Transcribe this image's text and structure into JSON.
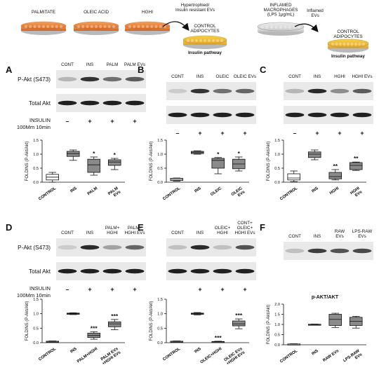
{
  "top_scheme": {
    "dishes_left": [
      "PALMITATE",
      "OLEIC ACID",
      "HGHI"
    ],
    "arrow_left_label": "Hypertrophied/\nInsulin resistant EVs",
    "target_left": "CONTROL\nADIPOCYTES",
    "pathway_left": "Insulin pathway",
    "dish_right": "INFLAMED\nMACROPHAGES\n(LPS 1μg/mL)",
    "arrow_right_label": "Inflamed\nEVs",
    "target_right": "CONTROL\nADIPOCYTES",
    "pathway_right": "Insulin pathway"
  },
  "blot_labels": {
    "pakt": "P-Akt (S473)",
    "total": "Total Akt",
    "insulin": "INSULIN",
    "insulin_dose": "100Mm 10min",
    "minus": "–",
    "plus": "+"
  },
  "y_axis_label": "FOLDINS (P-Akt/Akt)",
  "panels": [
    {
      "letter": "A",
      "lanes": [
        "CONT",
        "INS",
        "PALM",
        "PALM EVs"
      ],
      "insulin": [
        "–",
        "+",
        "+",
        "+"
      ],
      "x_labels": [
        "CONTROL",
        "INS",
        "PALM",
        "PALM\nEVs"
      ],
      "sig": [
        "",
        "",
        "*",
        "*"
      ],
      "chart_data": {
        "type": "box",
        "categories": [
          "CONTROL",
          "INS",
          "PALM",
          "PALM EVs"
        ],
        "ylim": [
          0,
          1.5
        ],
        "yticks": [
          0.0,
          0.5,
          1.0,
          1.5
        ],
        "boxes": [
          [
            0.0,
            0.08,
            0.18,
            0.28,
            0.35
          ],
          [
            0.78,
            0.92,
            1.02,
            1.1,
            1.15
          ],
          [
            0.25,
            0.35,
            0.62,
            0.82,
            0.9
          ],
          [
            0.45,
            0.6,
            0.72,
            0.8,
            0.85
          ]
        ]
      }
    },
    {
      "letter": "B",
      "lanes": [
        "CONT",
        "INS",
        "OLEIC",
        "OLEIC EVs"
      ],
      "insulin": [
        "–",
        "+",
        "+",
        "+"
      ],
      "x_labels": [
        "CONTROL",
        "INS",
        "OLEIC",
        "OLEIC\nEVs"
      ],
      "sig": [
        "",
        "",
        "*",
        "*"
      ],
      "chart_data": {
        "type": "box",
        "categories": [
          "CONTROL",
          "INS",
          "OLEIC",
          "OLEIC EVs"
        ],
        "ylim": [
          0,
          1.5
        ],
        "yticks": [
          0.0,
          0.5,
          1.0,
          1.5
        ],
        "boxes": [
          [
            0.04,
            0.06,
            0.1,
            0.14,
            0.15
          ],
          [
            1.0,
            1.02,
            1.06,
            1.1,
            1.12
          ],
          [
            0.3,
            0.5,
            0.78,
            0.85,
            0.88
          ],
          [
            0.4,
            0.48,
            0.65,
            0.82,
            0.9
          ]
        ]
      }
    },
    {
      "letter": "C",
      "lanes": [
        "CONT",
        "INS",
        "HGHI",
        "HGHI EVs"
      ],
      "insulin": [
        "–",
        "+",
        "+",
        "+"
      ],
      "x_labels": [
        "CONTROL",
        "INS",
        "HGHI",
        "HGHI\nEVs"
      ],
      "sig": [
        "",
        "",
        "**",
        "**"
      ],
      "chart_data": {
        "type": "box",
        "categories": [
          "CONTROL",
          "INS",
          "HGHI",
          "HGHI EVs"
        ],
        "ylim": [
          0,
          1.5
        ],
        "yticks": [
          0.0,
          0.5,
          1.0,
          1.5
        ],
        "boxes": [
          [
            0.02,
            0.08,
            0.15,
            0.3,
            0.4
          ],
          [
            0.8,
            0.88,
            1.0,
            1.08,
            1.15
          ],
          [
            0.08,
            0.12,
            0.2,
            0.35,
            0.45
          ],
          [
            0.42,
            0.45,
            0.6,
            0.7,
            0.72
          ]
        ]
      }
    },
    {
      "letter": "D",
      "lanes": [
        "CONT",
        "INS",
        "PALM+\nHGHI",
        "PALM+\nHGHI EVs"
      ],
      "insulin": [
        "–",
        "+",
        "+",
        "+"
      ],
      "x_labels": [
        "CONTROL",
        "INS",
        "PALM+HGHI",
        "PALM EVs\n+HGHI EVs"
      ],
      "sig": [
        "",
        "",
        "***",
        "***"
      ],
      "chart_data": {
        "type": "box",
        "categories": [
          "CONTROL",
          "INS",
          "PALM+HGHI",
          "PALM EVs +HGHI EVs"
        ],
        "ylim": [
          0,
          1.5
        ],
        "yticks": [
          0.0,
          0.5,
          1.0,
          1.5
        ],
        "boxes": [
          [
            0.02,
            0.03,
            0.04,
            0.05,
            0.06
          ],
          [
            0.97,
            0.98,
            1.0,
            1.02,
            1.03
          ],
          [
            0.12,
            0.18,
            0.25,
            0.33,
            0.38
          ],
          [
            0.45,
            0.55,
            0.65,
            0.72,
            0.8
          ]
        ]
      }
    },
    {
      "letter": "E",
      "lanes": [
        "CONT",
        "INS",
        "OLEIC+\nHGHI",
        "CONT+\nOLEIC+\nHGHI EVs"
      ],
      "insulin": [
        "",
        "+",
        "+",
        "+"
      ],
      "x_labels": [
        "CONTROL",
        "INS",
        "OLEIC+HGHI",
        "OLEIC EVs\n+HGHI EVs"
      ],
      "sig": [
        "",
        "",
        "***",
        "***"
      ],
      "chart_data": {
        "type": "box",
        "categories": [
          "CONTROL",
          "INS",
          "OLEIC+HGHI",
          "OLEIC EVs +HGHI EVs"
        ],
        "ylim": [
          0,
          1.5
        ],
        "yticks": [
          0.0,
          0.5,
          1.0,
          1.5
        ],
        "boxes": [
          [
            0.02,
            0.03,
            0.04,
            0.05,
            0.06
          ],
          [
            0.96,
            0.98,
            1.0,
            1.02,
            1.04
          ],
          [
            0.01,
            0.02,
            0.03,
            0.04,
            0.05
          ],
          [
            0.48,
            0.58,
            0.65,
            0.75,
            0.82
          ]
        ]
      }
    },
    {
      "letter": "F",
      "lanes": [
        "CONT",
        "INS",
        "RAW\nEVs",
        "LPS-RAW\nEVs"
      ],
      "insulin": [],
      "x_labels": [
        "CONTROL",
        "INS",
        "RAW EVs",
        "LPS-RAW\nEVs"
      ],
      "sig": [
        "",
        "",
        "",
        ""
      ],
      "title": "p-AKT/AKT",
      "chart_data": {
        "type": "box",
        "categories": [
          "CONTROL",
          "INS",
          "RAW EVs",
          "LPS-RAW EVs"
        ],
        "ylim": [
          0,
          2.0
        ],
        "yticks": [
          0.0,
          0.5,
          1.0,
          1.5,
          2.0
        ],
        "boxes": [
          [
            0.01,
            0.02,
            0.03,
            0.04,
            0.05
          ],
          [
            0.98,
            0.99,
            1.0,
            1.01,
            1.02
          ],
          [
            0.85,
            0.95,
            1.25,
            1.5,
            1.55
          ],
          [
            0.82,
            0.95,
            1.15,
            1.35,
            1.4
          ]
        ]
      }
    }
  ],
  "colors": {
    "dish_orange": "#e8742a",
    "dish_yellow": "#f2b327",
    "box_white": "#ffffff",
    "box_dark": "#8a8a8a",
    "band": "#2a2a2a"
  }
}
